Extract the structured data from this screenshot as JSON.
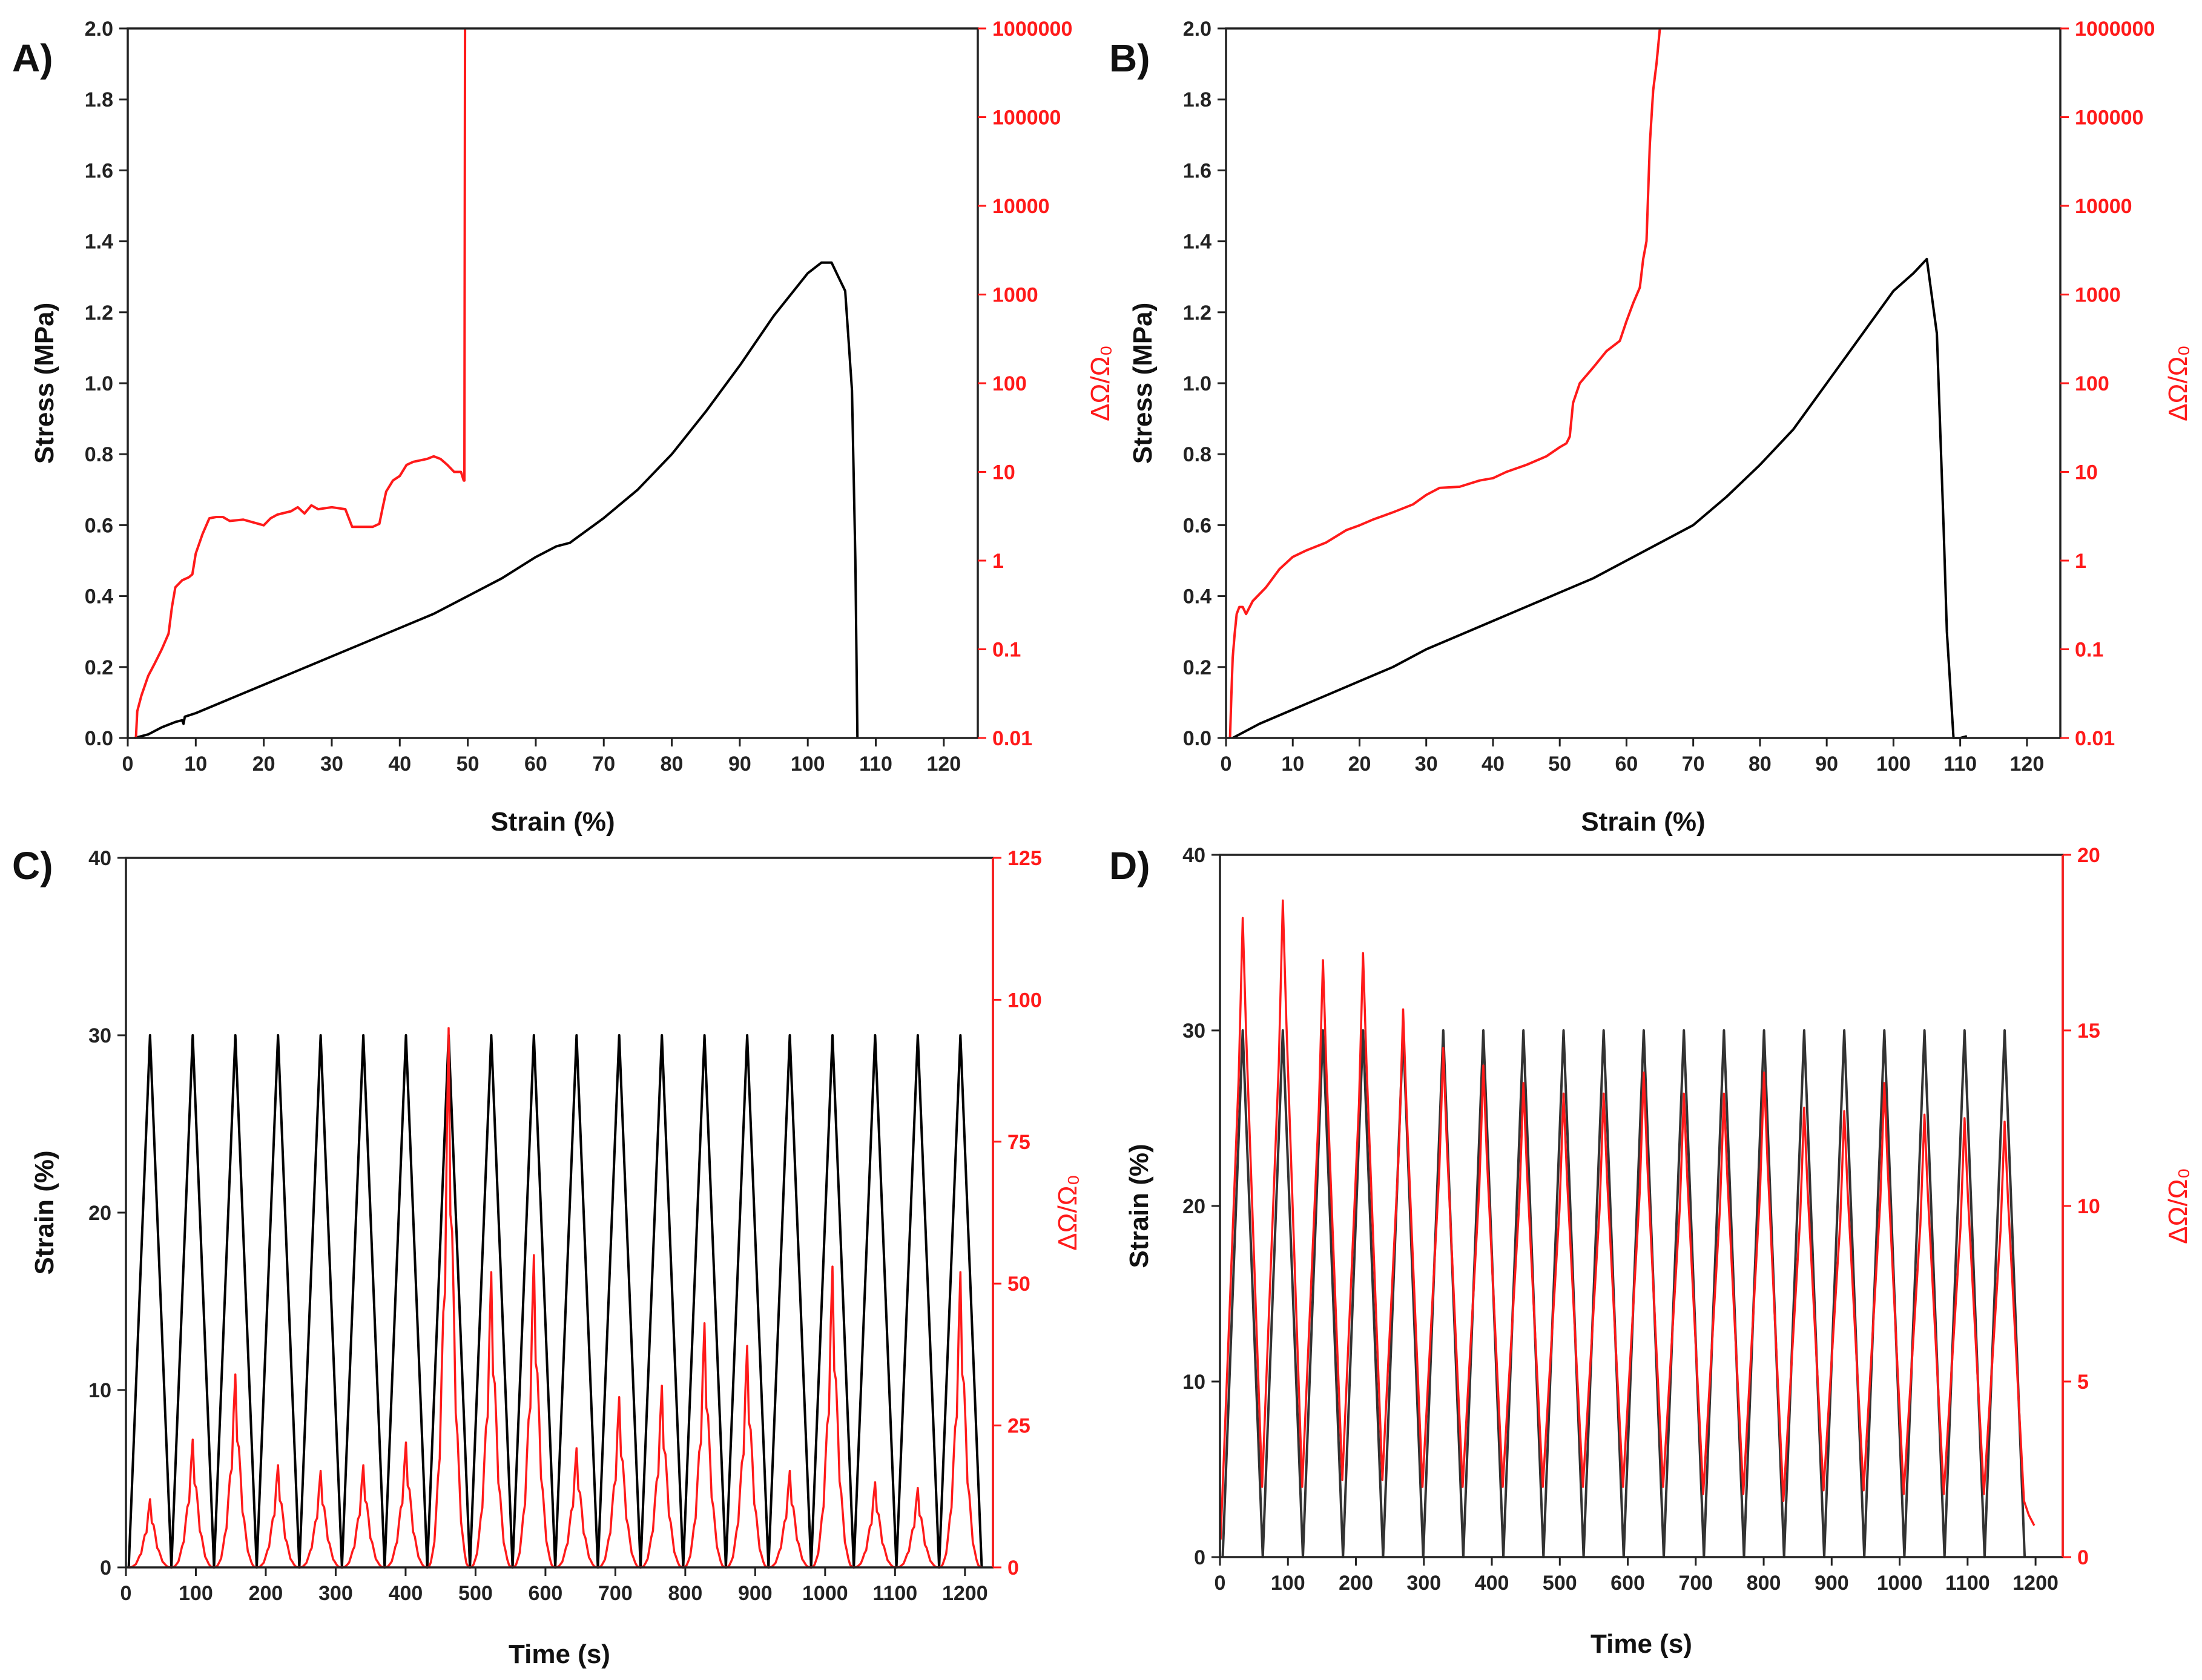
{
  "colors": {
    "black_series": "#000000",
    "red_series": "#ff1a1a",
    "axis": "#222222"
  },
  "chart_data": [
    {
      "panel": "A)",
      "type": "line",
      "xlabel": "Strain (%)",
      "ylabel": "Stress (MPa)",
      "y2label": "ΔΩ/Ω₀",
      "xlim": [
        0,
        125
      ],
      "ylim": [
        0,
        2.0
      ],
      "y2lim": [
        0.01,
        1000000
      ],
      "y2scale": "log",
      "xticks": [
        "0",
        "10",
        "20",
        "30",
        "40",
        "50",
        "60",
        "70",
        "80",
        "90",
        "100",
        "110",
        "120"
      ],
      "yticks": [
        "0.0",
        "0.2",
        "0.4",
        "0.6",
        "0.8",
        "1.0",
        "1.2",
        "1.4",
        "1.6",
        "1.8",
        "2.0"
      ],
      "y2ticks": [
        "0.01",
        "0.1",
        "1",
        "10",
        "100",
        "1000",
        "10000",
        "100000",
        "1000000"
      ],
      "series": [
        {
          "name": "Stress",
          "axis": "left",
          "color": "#000000",
          "x": [
            1,
            3,
            5,
            7,
            8,
            8.2,
            8.4,
            10,
            15,
            20,
            25,
            30,
            35,
            40,
            45,
            50,
            55,
            60,
            63,
            65,
            70,
            75,
            80,
            85,
            90,
            95,
            100,
            102,
            103.5,
            104.5,
            105.5,
            106.5,
            107,
            107.3
          ],
          "y": [
            0,
            0.01,
            0.03,
            0.045,
            0.05,
            0.04,
            0.06,
            0.07,
            0.11,
            0.15,
            0.19,
            0.23,
            0.27,
            0.31,
            0.35,
            0.4,
            0.45,
            0.51,
            0.54,
            0.55,
            0.62,
            0.7,
            0.8,
            0.92,
            1.05,
            1.19,
            1.31,
            1.34,
            1.34,
            1.3,
            1.26,
            0.98,
            0.5,
            0
          ]
        },
        {
          "name": "ΔΩ/Ω₀",
          "axis": "right",
          "color": "#ff1a1a",
          "x": [
            1.2,
            1.4,
            2,
            3,
            4,
            5,
            6,
            6.5,
            7,
            8,
            9,
            9.5,
            10,
            11,
            12,
            13,
            14,
            15,
            17,
            20,
            21,
            22,
            24,
            25,
            26,
            27,
            28,
            30,
            32,
            33,
            34,
            36,
            37,
            37.5,
            38,
            39,
            40,
            41,
            42,
            44,
            45,
            46,
            47,
            48,
            49,
            49.4,
            49.5,
            49.6
          ],
          "y": [
            0.01,
            0.02,
            0.03,
            0.05,
            0.07,
            0.1,
            0.15,
            0.3,
            0.5,
            0.6,
            0.65,
            0.7,
            1.2,
            2,
            3,
            3.1,
            3.1,
            2.8,
            2.9,
            2.5,
            3,
            3.3,
            3.6,
            4,
            3.4,
            4.2,
            3.8,
            4,
            3.8,
            2.4,
            2.4,
            2.4,
            2.6,
            4,
            6,
            8,
            9,
            12,
            13,
            14,
            15,
            14,
            12,
            10,
            10,
            8,
            8,
            1000000
          ]
        }
      ]
    },
    {
      "panel": "B)",
      "type": "line",
      "xlabel": "Strain (%)",
      "ylabel": "Stress (MPa)",
      "y2label": "ΔΩ/Ω₀",
      "xlim": [
        0,
        125
      ],
      "ylim": [
        0,
        2.0
      ],
      "y2lim": [
        0.01,
        1000000
      ],
      "y2scale": "log",
      "xticks": [
        "0",
        "10",
        "20",
        "30",
        "40",
        "50",
        "60",
        "70",
        "80",
        "90",
        "100",
        "110",
        "120"
      ],
      "yticks": [
        "0.0",
        "0.2",
        "0.4",
        "0.6",
        "0.8",
        "1.0",
        "1.2",
        "1.4",
        "1.6",
        "1.8",
        "2.0"
      ],
      "y2ticks": [
        "0.01",
        "0.1",
        "1",
        "10",
        "100",
        "1000",
        "10000",
        "100000",
        "1000000"
      ],
      "series": [
        {
          "name": "Stress",
          "axis": "left",
          "color": "#000000",
          "x": [
            1,
            5,
            10,
            15,
            20,
            25,
            30,
            35,
            40,
            45,
            50,
            55,
            60,
            65,
            67,
            70,
            75,
            80,
            85,
            90,
            95,
            100,
            103,
            105,
            106.5,
            107.5,
            108,
            109,
            110,
            111
          ],
          "y": [
            0,
            0.04,
            0.08,
            0.12,
            0.16,
            0.2,
            0.25,
            0.29,
            0.33,
            0.37,
            0.41,
            0.45,
            0.5,
            0.55,
            0.57,
            0.6,
            0.68,
            0.77,
            0.87,
            1.0,
            1.13,
            1.26,
            1.31,
            1.35,
            1.14,
            0.6,
            0.3,
            0,
            0,
            0.005
          ]
        },
        {
          "name": "ΔΩ/Ω₀",
          "axis": "right",
          "color": "#ff1a1a",
          "x": [
            0.6,
            0.8,
            1,
            1.3,
            1.6,
            2,
            2.5,
            3,
            4,
            6,
            8,
            10,
            12,
            15,
            18,
            20,
            22,
            25,
            28,
            30,
            32,
            35,
            38,
            40,
            42,
            45,
            48,
            50,
            51,
            51.5,
            52,
            53,
            55,
            57,
            59,
            60,
            61,
            62,
            62.5,
            63,
            63.5,
            64,
            64.5,
            65
          ],
          "y": [
            0.01,
            0.03,
            0.08,
            0.15,
            0.25,
            0.3,
            0.3,
            0.25,
            0.35,
            0.5,
            0.8,
            1.1,
            1.3,
            1.6,
            2.2,
            2.5,
            2.9,
            3.5,
            4.3,
            5.5,
            6.6,
            6.8,
            8,
            8.5,
            10,
            12,
            15,
            19,
            21,
            25,
            60,
            100,
            150,
            230,
            300,
            500,
            800,
            1200,
            2500,
            4000,
            50000,
            200000,
            400000,
            1000000
          ]
        }
      ]
    },
    {
      "panel": "C)",
      "type": "line",
      "xlabel": "Time (s)",
      "ylabel": "Strain (%)",
      "y2label": "ΔΩ/Ω₀",
      "xlim": [
        0,
        1240
      ],
      "ylim": [
        0,
        40
      ],
      "y2lim": [
        0,
        125
      ],
      "y2scale": "linear",
      "xticks": [
        "0",
        "100",
        "200",
        "300",
        "400",
        "500",
        "600",
        "700",
        "800",
        "900",
        "1000",
        "1100",
        "1200"
      ],
      "yticks": [
        "0",
        "10",
        "20",
        "30",
        "40"
      ],
      "y2ticks": [
        "0",
        "25",
        "50",
        "75",
        "100",
        "125"
      ],
      "period_s": 61,
      "cycles": 20,
      "strain_peaks": [
        30,
        30,
        30,
        30,
        30,
        30,
        30,
        30,
        30,
        30,
        30,
        30,
        30,
        30,
        30,
        30,
        30,
        30,
        30,
        30
      ],
      "signal_peaks": [
        12,
        22.5,
        34,
        18,
        17,
        18,
        22,
        95,
        52,
        55,
        21,
        30,
        32,
        43,
        39,
        17,
        53,
        15,
        14,
        52
      ]
    },
    {
      "panel": "D)",
      "type": "line",
      "xlabel": "Time (s)",
      "ylabel": "Strain (%)",
      "y2label": "ΔΩ/Ω₀",
      "xlim": [
        0,
        1240
      ],
      "ylim": [
        0,
        40
      ],
      "y2lim": [
        0,
        20
      ],
      "y2scale": "linear",
      "xticks": [
        "0",
        "100",
        "200",
        "300",
        "400",
        "500",
        "600",
        "700",
        "800",
        "900",
        "1000",
        "1100",
        "1200"
      ],
      "yticks": [
        "0",
        "10",
        "20",
        "30",
        "40"
      ],
      "y2ticks": [
        "0",
        "5",
        "10",
        "15",
        "20"
      ],
      "period_s": 59,
      "cycles": 20,
      "strain_peaks": [
        30,
        30,
        30,
        30,
        30,
        30,
        30,
        30,
        30,
        30,
        30,
        30,
        30,
        30,
        30,
        30,
        30,
        30,
        30,
        30
      ],
      "signal_peaks": [
        18.2,
        18.7,
        17,
        17.2,
        15.6,
        14.5,
        14,
        13.5,
        13.2,
        13.2,
        13.8,
        13.2,
        13.2,
        13.8,
        12.8,
        12.7,
        13.5,
        12.6,
        12.5,
        12.4
      ],
      "signal_troughs": [
        2,
        2,
        2.2,
        2.2,
        2,
        2,
        2,
        2,
        2,
        2,
        2,
        1.8,
        1.8,
        1.6,
        1.9,
        1.9,
        1.8,
        1.8,
        1.8,
        1.6
      ]
    }
  ]
}
